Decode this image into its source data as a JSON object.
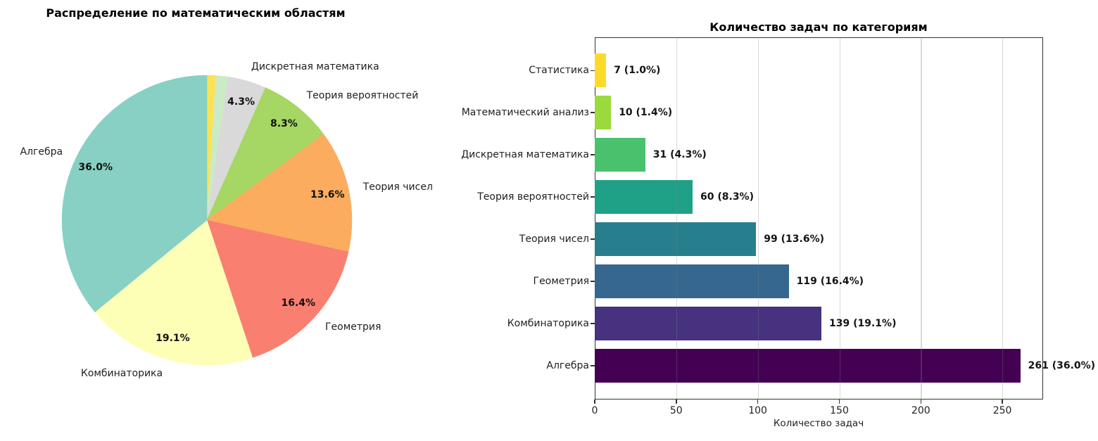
{
  "chart_data": [
    {
      "type": "pie",
      "title": "Распределение по математическим областям",
      "direction": "clockwise",
      "start_angle_deg": 90,
      "label_distance": 1.1,
      "pct_distance": 0.85,
      "slices": [
        {
          "label": "Статистика",
          "value": 7,
          "pct": "1.0%",
          "color": "#ffe14f",
          "show_label": false
        },
        {
          "label": "Математический анализ",
          "value": 10,
          "pct": "1.4%",
          "color": "#ccebc5",
          "show_label": false
        },
        {
          "label": "Дискретная математика",
          "value": 31,
          "pct": "4.3%",
          "color": "#d9d9d9",
          "show_label": true
        },
        {
          "label": "Теория вероятностей",
          "value": 60,
          "pct": "8.3%",
          "color": "#a6d663",
          "show_label": true
        },
        {
          "label": "Теория чисел",
          "value": 99,
          "pct": "13.6%",
          "color": "#fbac5f",
          "show_label": true
        },
        {
          "label": "Геометрия",
          "value": 119,
          "pct": "16.4%",
          "color": "#f97f70",
          "show_label": true
        },
        {
          "label": "Комбинаторика",
          "value": 139,
          "pct": "19.1%",
          "color": "#feffb6",
          "show_label": true
        },
        {
          "label": "Алгебра",
          "value": 261,
          "pct": "36.0%",
          "color": "#87d0c3",
          "show_label": true
        }
      ]
    },
    {
      "type": "bar",
      "orientation": "horizontal",
      "title": "Количество задач по категориям",
      "xlabel": "Количество задач",
      "xticks": [
        0,
        50,
        100,
        150,
        200,
        250
      ],
      "xlim": [
        0,
        275
      ],
      "grid": "vertical",
      "rows_top_to_bottom": [
        {
          "category": "Статистика",
          "value": 7,
          "bar_label": "7 (1.0%)",
          "color": "#fdda28"
        },
        {
          "category": "Математический анализ",
          "value": 10,
          "bar_label": "10 (1.4%)",
          "color": "#9bd93c"
        },
        {
          "category": "Дискретная математика",
          "value": 31,
          "bar_label": "31 (4.3%)",
          "color": "#4ac16d"
        },
        {
          "category": "Теория вероятностей",
          "value": 60,
          "bar_label": "60 (8.3%)",
          "color": "#1fa187"
        },
        {
          "category": "Теория чисел",
          "value": 99,
          "bar_label": "99 (13.6%)",
          "color": "#277f8e"
        },
        {
          "category": "Геометрия",
          "value": 119,
          "bar_label": "119 (16.4%)",
          "color": "#36678e"
        },
        {
          "category": "Комбинаторика",
          "value": 139,
          "bar_label": "139 (19.1%)",
          "color": "#46327e"
        },
        {
          "category": "Алгебра",
          "value": 261,
          "bar_label": "261 (36.0%)",
          "color": "#440154"
        }
      ]
    }
  ]
}
